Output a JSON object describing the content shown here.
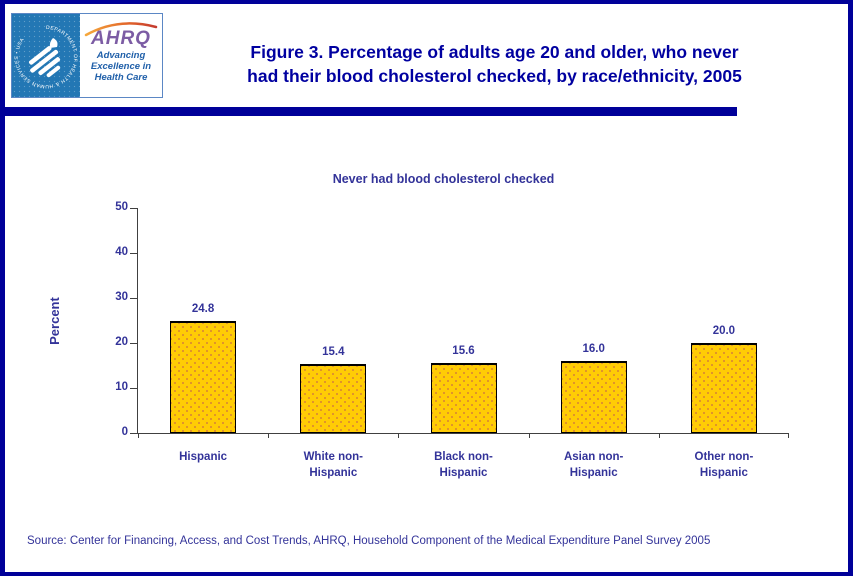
{
  "page": {
    "border_color": "#000099",
    "background_color": "#ffffff"
  },
  "header": {
    "title_line1": "Figure 3. Percentage of adults age 20 and older, who never",
    "title_line2": "had their blood cholesterol checked, by race/ethnicity, 2005",
    "title_color": "#0000a0",
    "logo": {
      "hhs_ring_text": "DEPARTMENT OF HEALTH & HUMAN SERVICES • USA",
      "ahrq_acronym": "AHRQ",
      "tagline_line1": "Advancing",
      "tagline_line2": "Excellence in",
      "tagline_line3": "Health Care",
      "hhs_blue": "#2377b4",
      "ahrq_purple": "#7c5ca4",
      "tagline_blue": "#1f5fa9"
    }
  },
  "chart_data": {
    "type": "bar",
    "title": "Never had blood cholesterol checked",
    "categories": [
      "Hispanic",
      "White non-Hispanic",
      "Black non-Hispanic",
      "Asian non-Hispanic",
      "Other non-Hispanic"
    ],
    "category_label_lines": [
      [
        "Hispanic"
      ],
      [
        "White non-",
        "Hispanic"
      ],
      [
        "Black non-",
        "Hispanic"
      ],
      [
        "Asian non-",
        "Hispanic"
      ],
      [
        "Other non-",
        "Hispanic"
      ]
    ],
    "values": [
      24.8,
      15.4,
      15.6,
      16.0,
      20.0
    ],
    "value_labels": [
      "24.8",
      "15.4",
      "15.6",
      "16.0",
      "20.0"
    ],
    "xlabel": "",
    "ylabel": "Percent",
    "ylim": [
      0,
      50
    ],
    "yticks": [
      0,
      10,
      20,
      30,
      40,
      50
    ],
    "grid": false,
    "legend": false,
    "bar_color": "#ffcc05",
    "bar_dot_color": "#dd8f2e",
    "bar_border_color": "#000000",
    "text_color": "#333399",
    "axis_color": "#404040"
  },
  "footer": {
    "source": "Source: Center for Financing, Access, and Cost Trends, AHRQ, Household Component of the Medical Expenditure Panel Survey 2005"
  }
}
